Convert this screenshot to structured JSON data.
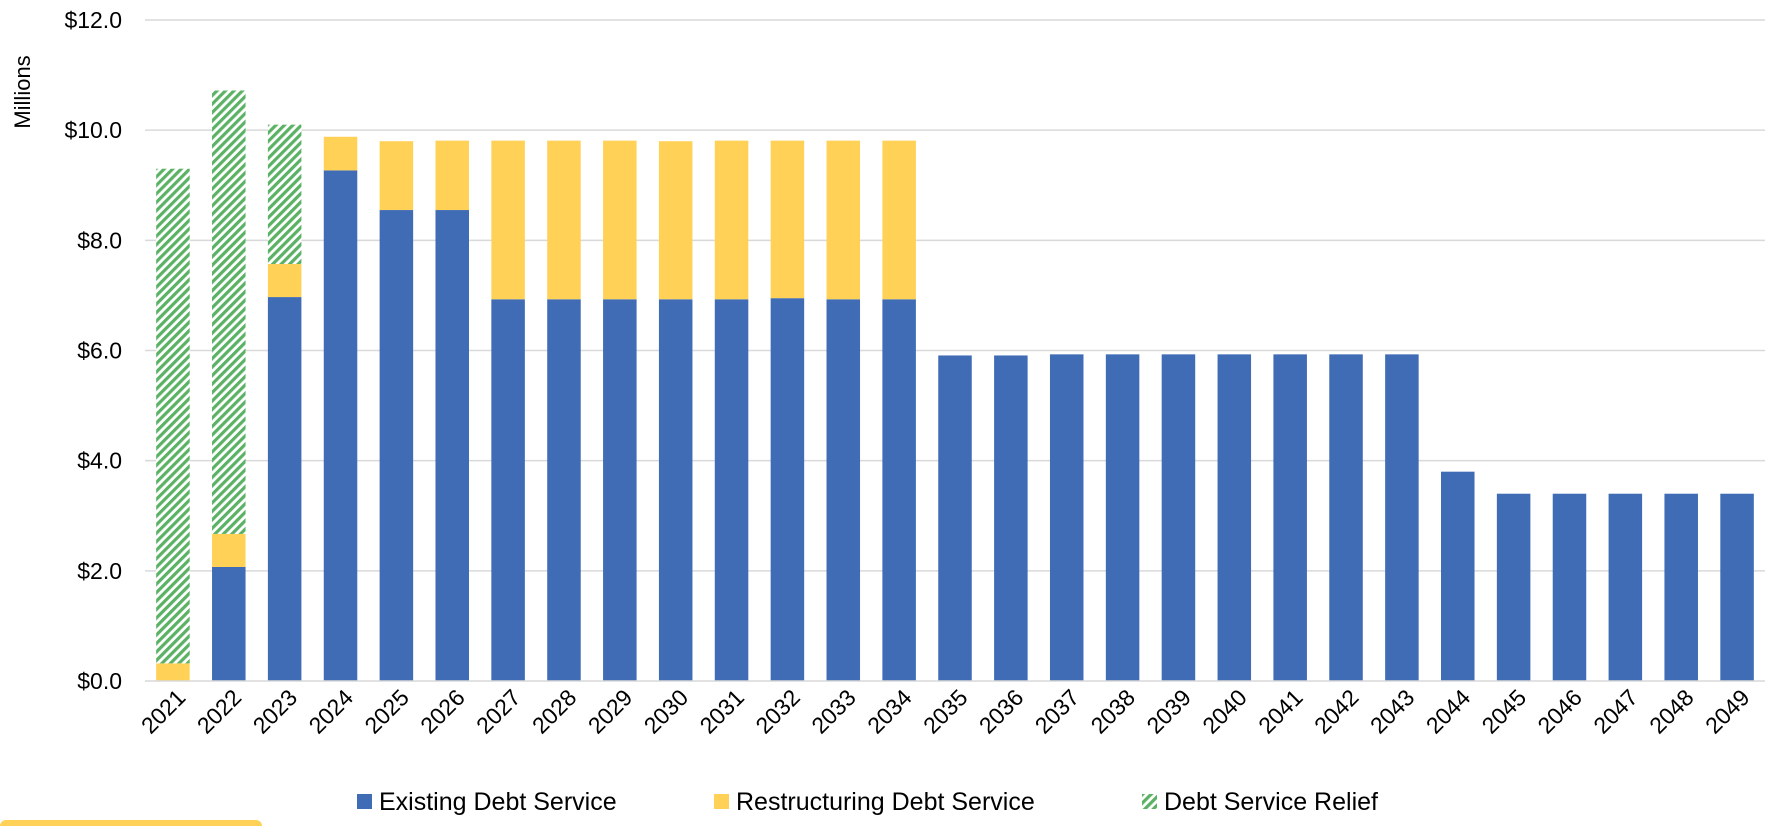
{
  "chart_data": {
    "type": "bar",
    "stacked": true,
    "ylabel": "Millions",
    "ylim": [
      0,
      12
    ],
    "yticks": [
      "$0.0",
      "$2.0",
      "$4.0",
      "$6.0",
      "$8.0",
      "$10.0",
      "$12.0"
    ],
    "ytick_values": [
      0,
      2,
      4,
      6,
      8,
      10,
      12
    ],
    "grid": true,
    "legend_position": "bottom",
    "categories": [
      "2021",
      "2022",
      "2023",
      "2024",
      "2025",
      "2026",
      "2027",
      "2028",
      "2029",
      "2030",
      "2031",
      "2032",
      "2033",
      "2034",
      "2035",
      "2036",
      "2037",
      "2038",
      "2039",
      "2040",
      "2041",
      "2042",
      "2043",
      "2044",
      "2045",
      "2046",
      "2047",
      "2048",
      "2049"
    ],
    "series": [
      {
        "name": "Existing Debt Service",
        "color": "#3F6CB5",
        "pattern": "solid",
        "values": [
          0,
          2.07,
          6.97,
          9.27,
          8.55,
          8.55,
          6.93,
          6.93,
          6.93,
          6.93,
          6.93,
          6.95,
          6.93,
          6.93,
          5.91,
          5.91,
          5.93,
          5.93,
          5.93,
          5.93,
          5.93,
          5.93,
          5.93,
          3.8,
          3.4,
          3.4,
          3.4,
          3.4,
          3.4
        ]
      },
      {
        "name": "Restructuring Debt Service",
        "color": "#FFD157",
        "pattern": "solid",
        "values": [
          0.32,
          0.6,
          0.6,
          0.61,
          1.25,
          1.26,
          2.88,
          2.88,
          2.88,
          2.87,
          2.88,
          2.86,
          2.88,
          2.88,
          0,
          0,
          0,
          0,
          0,
          0,
          0,
          0,
          0,
          0,
          0,
          0,
          0,
          0,
          0
        ]
      },
      {
        "name": "Debt Service Relief",
        "color": "#5BB265",
        "pattern": "hatched",
        "values": [
          8.98,
          8.05,
          2.53,
          0,
          0,
          0,
          0,
          0,
          0,
          0,
          0,
          0,
          0,
          0,
          0,
          0,
          0,
          0,
          0,
          0,
          0,
          0,
          0,
          0,
          0,
          0,
          0,
          0,
          0
        ]
      }
    ]
  },
  "colors": {
    "grid": "#D9D9D9",
    "footer_bar": "#FFD157"
  }
}
